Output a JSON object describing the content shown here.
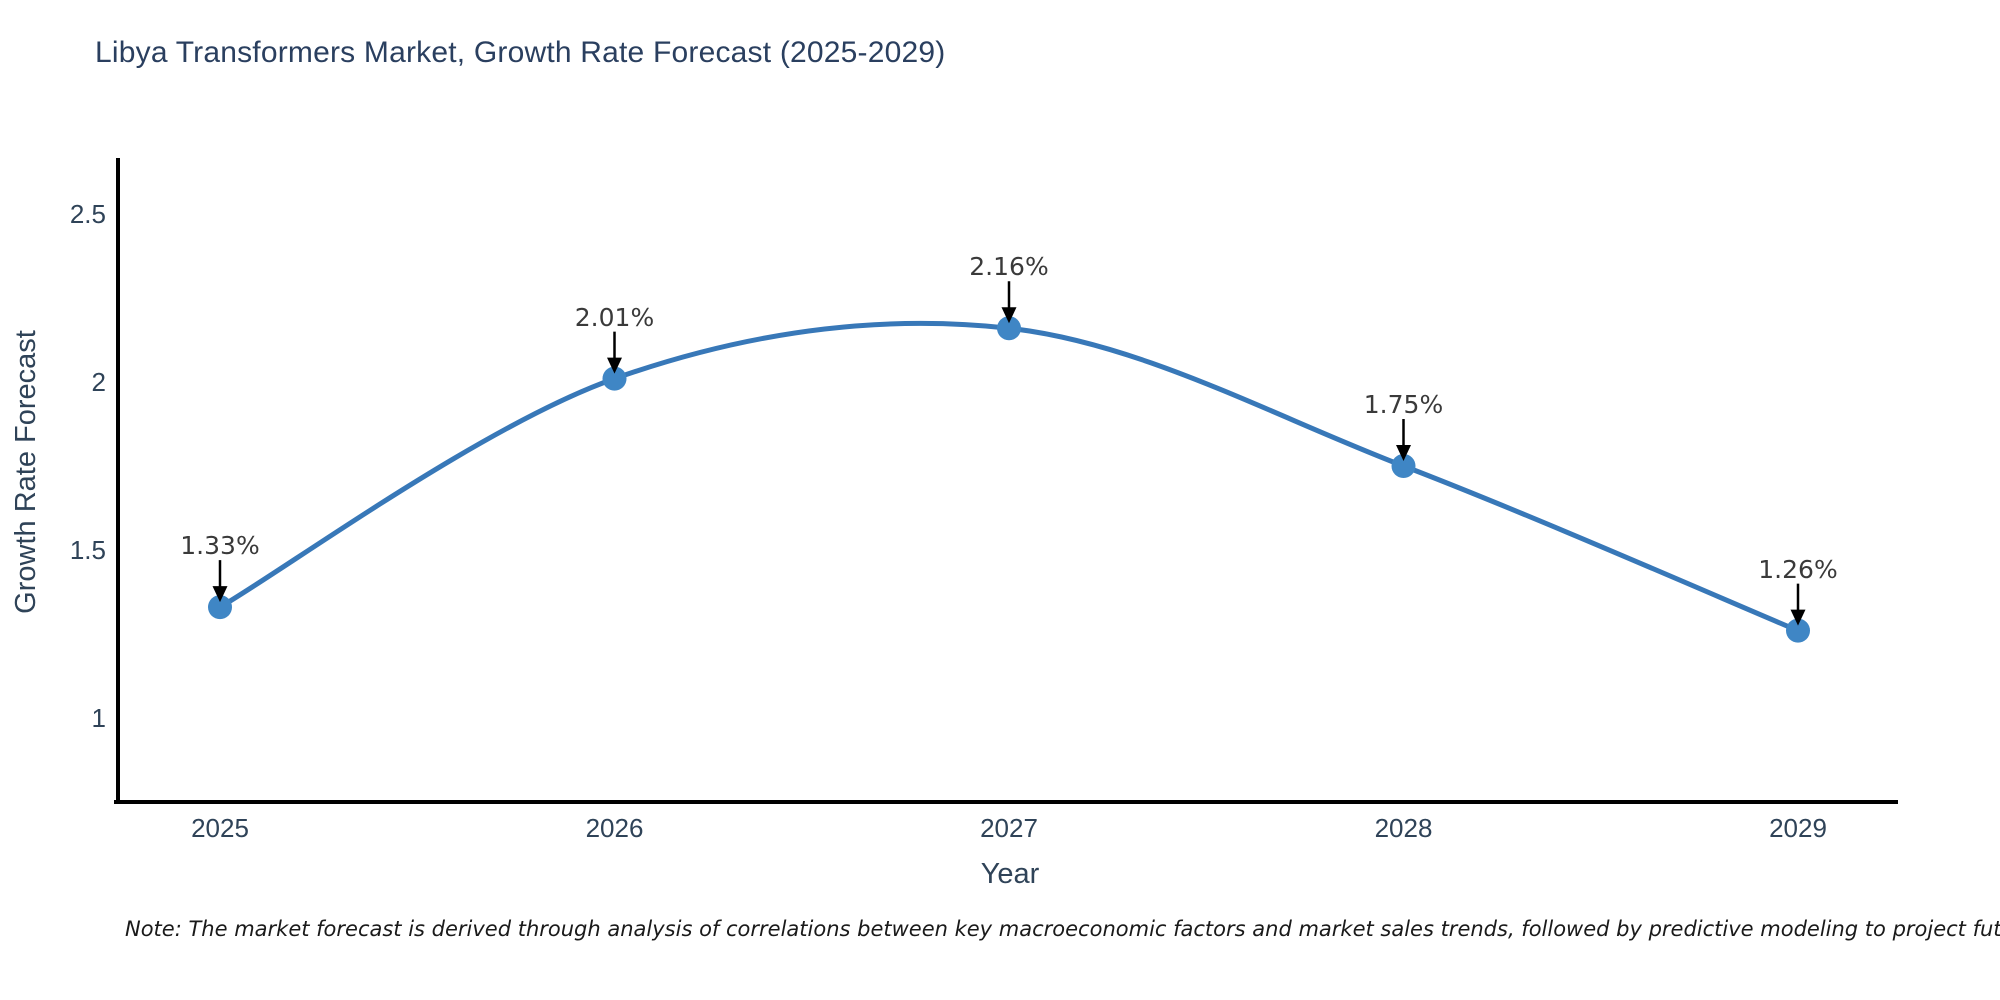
{
  "title": "Libya Transformers Market, Growth Rate Forecast (2025-2029)",
  "footnote": "Note: The market forecast is derived through analysis of correlations between key macroeconomic factors and market sales trends, followed by predictive modeling to project future sales.",
  "chart_data": {
    "type": "line",
    "title": "Libya Transformers Market, Growth Rate Forecast (2025-2029)",
    "x": [
      2025,
      2026,
      2027,
      2028,
      2029
    ],
    "series": [
      {
        "name": "Growth Rate Forecast",
        "values": [
          1.33,
          2.01,
          2.16,
          1.75,
          1.26
        ]
      }
    ],
    "point_labels": [
      "1.33%",
      "2.01%",
      "2.16%",
      "1.75%",
      "1.26%"
    ],
    "xlabel": "Year",
    "ylabel": "Growth Rate Forecast",
    "xticks": [
      "2025",
      "2026",
      "2027",
      "2028",
      "2029"
    ],
    "yticks": [
      1,
      1.5,
      2,
      2.5
    ],
    "ylim": [
      0.75,
      2.67
    ],
    "xlim": [
      2024.73,
      2029.26
    ],
    "grid": false,
    "legend": false,
    "smooth": true,
    "marker": "circle"
  },
  "colors": {
    "background": "#ffffff",
    "title_text": "#2a3f5f",
    "axis_text": "#2f4358",
    "axis_line": "#000000",
    "line": "#3878b8",
    "marker": "#3f86c5",
    "annotation_text": "#3a3a3a",
    "arrow": "#000000",
    "note_text": "#1a1a1a"
  }
}
